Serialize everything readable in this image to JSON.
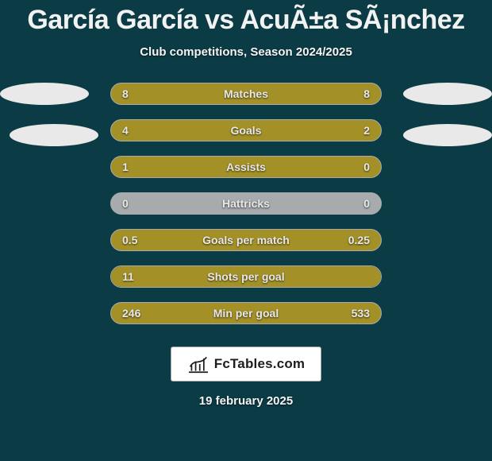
{
  "colors": {
    "background": "#0b3b45",
    "title": "#f2f2f2",
    "subtitle": "#f5f5f5",
    "text": "#e8e8e8",
    "track": "#a7abad",
    "left": "#a39128",
    "right": "#a39128",
    "oval": "#e9e9e9",
    "logo_bg": "#ffffff",
    "logo_border": "#a7abad",
    "logo_text": "#1d1d1d",
    "date": "#f3f3f3"
  },
  "title": "García García vs AcuÃ±a SÃ¡nchez",
  "subtitle": "Club competitions, Season 2024/2025",
  "rows": [
    {
      "label": "Matches",
      "left_val": "8",
      "right_val": "8",
      "left_pct": 50,
      "right_pct": 50
    },
    {
      "label": "Goals",
      "left_val": "4",
      "right_val": "2",
      "left_pct": 66,
      "right_pct": 34
    },
    {
      "label": "Assists",
      "left_val": "1",
      "right_val": "0",
      "left_pct": 80,
      "right_pct": 20
    },
    {
      "label": "Hattricks",
      "left_val": "0",
      "right_val": "0",
      "left_pct": 0,
      "right_pct": 0
    },
    {
      "label": "Goals per match",
      "left_val": "0.5",
      "right_val": "0.25",
      "left_pct": 66,
      "right_pct": 34
    },
    {
      "label": "Shots per goal",
      "left_val": "11",
      "right_val": "",
      "left_pct": 100,
      "right_pct": 0
    },
    {
      "label": "Min per goal",
      "left_val": "246",
      "right_val": "533",
      "left_pct": 32,
      "right_pct": 68
    }
  ],
  "logo_text": "FcTables.com",
  "date": "19 february 2025"
}
